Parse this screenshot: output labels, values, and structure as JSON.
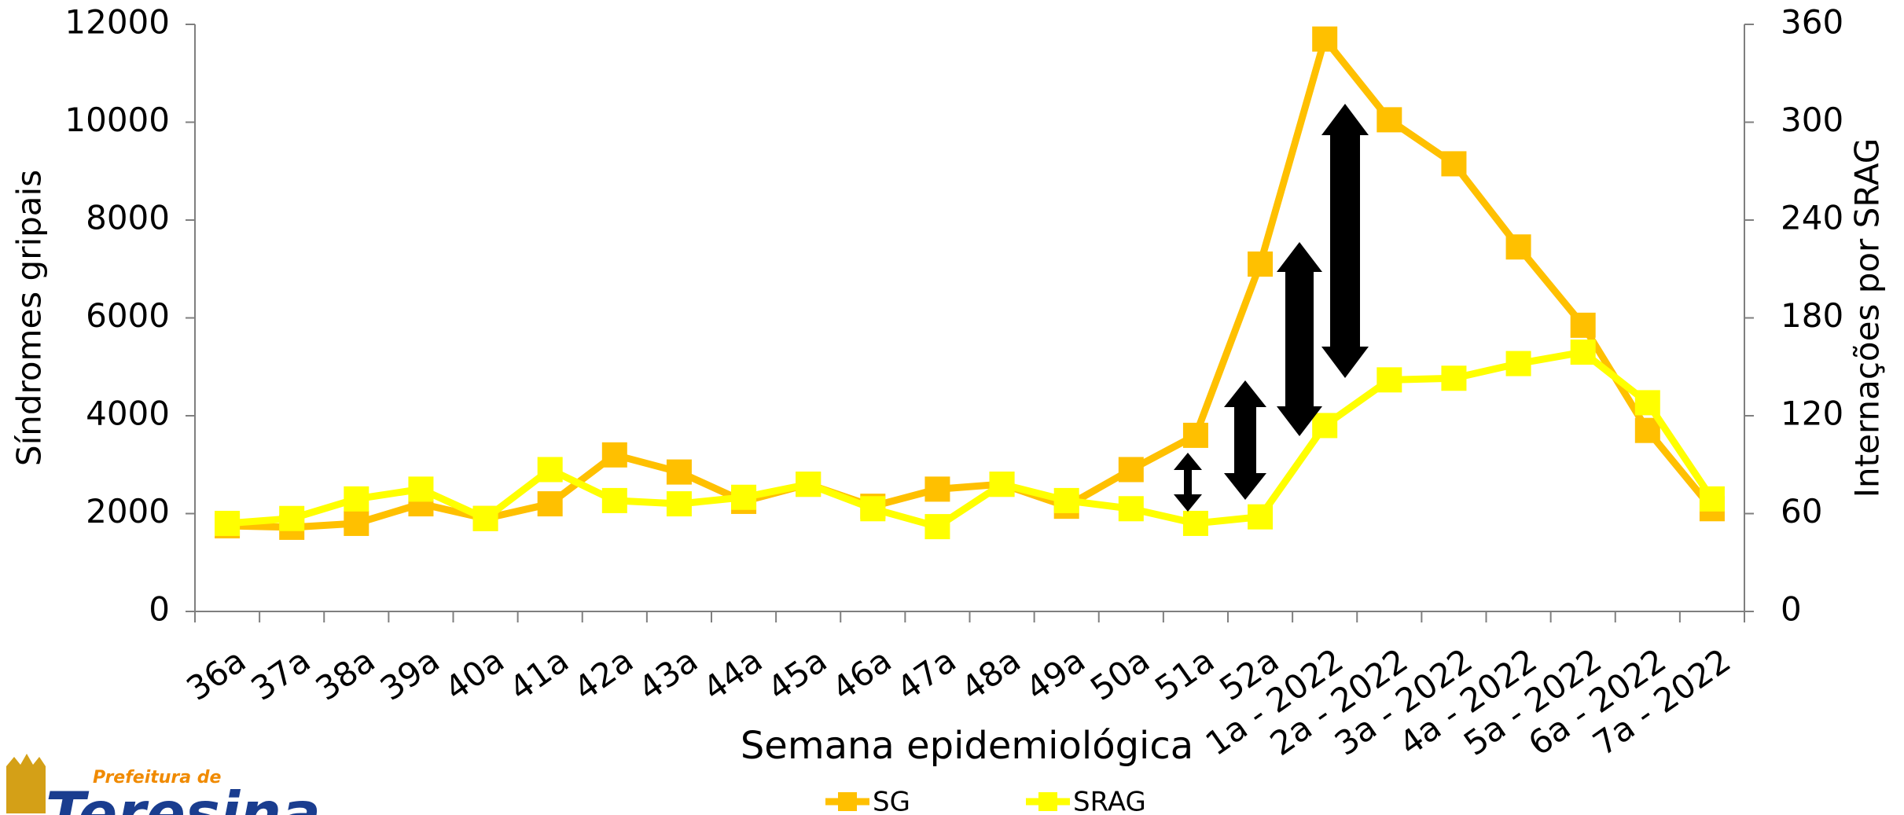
{
  "chart_data": {
    "type": "line",
    "x_label": "Semana epidemiológica",
    "y_label": "Síndromes gripais",
    "y2_label": "Internações por SRAG",
    "categories": [
      "36a",
      "37a",
      "38a",
      "39a",
      "40a",
      "41a",
      "42a",
      "43a",
      "44a",
      "45a",
      "46a",
      "47a",
      "48a",
      "49a",
      "50a",
      "51a",
      "52a",
      "1a - 2022",
      "2a - 2022",
      "3a - 2022",
      "4a - 2022",
      "5a - 2022",
      "6a - 2022",
      "7a - 2022"
    ],
    "series": [
      {
        "name": "SG",
        "color": "#ffc000",
        "values": [
          1750,
          1720,
          1800,
          2200,
          1900,
          2200,
          3200,
          2850,
          2250,
          2600,
          2150,
          2500,
          2600,
          2150,
          2900,
          3600,
          7100,
          11700,
          10050,
          9150,
          7450,
          5850,
          3700,
          2100
        ]
      },
      {
        "name": "SRAG",
        "color": "#ffff00",
        "axis": "y2",
        "values": [
          54,
          57,
          69,
          75,
          57,
          87,
          68,
          66,
          70,
          78,
          63,
          52,
          78,
          68,
          63,
          54,
          58,
          114,
          142,
          143,
          152,
          159,
          128,
          69
        ]
      }
    ],
    "ylim": [
      0,
      12000
    ],
    "yticks": [
      0,
      2000,
      4000,
      6000,
      8000,
      10000,
      12000
    ],
    "y2lim": [
      0,
      360
    ],
    "y2ticks": [
      0,
      60,
      120,
      180,
      240,
      300,
      360
    ],
    "legend": "bottom"
  },
  "logo": {
    "line1": "Prefeitura de",
    "line2": "Teresina"
  }
}
